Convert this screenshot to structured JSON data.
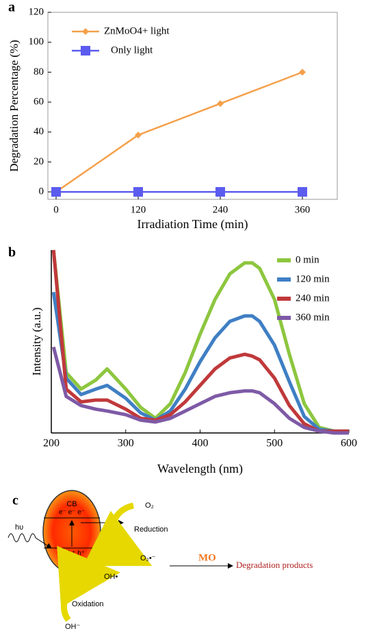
{
  "chart_data": [
    {
      "type": "line",
      "label": "a",
      "xlabel": "Irradiation Time (min)",
      "ylabel": "Degradation Percentage (%)",
      "x": [
        0,
        120,
        240,
        360
      ],
      "xlim": [
        -12,
        411
      ],
      "xticks": [
        0,
        120,
        240,
        360
      ],
      "ylim": [
        -5,
        120
      ],
      "yticks": [
        0,
        20,
        40,
        60,
        80,
        100,
        120
      ],
      "legend": "upper left",
      "series": [
        {
          "name": "ZnMoO4+ light",
          "color": "#f5a04a",
          "marker": "diamond",
          "values": [
            0,
            38,
            59,
            80
          ]
        },
        {
          "name": "Only light",
          "color": "#5b5bef",
          "marker": "square",
          "values": [
            0,
            0,
            0,
            0
          ]
        }
      ]
    },
    {
      "type": "line",
      "label": "b",
      "xlabel": "Wavelength (nm)",
      "ylabel": "Intensity (a.u.)",
      "x": [
        203,
        220,
        240,
        260,
        275,
        300,
        320,
        340,
        360,
        380,
        400,
        420,
        440,
        460,
        470,
        480,
        500,
        520,
        540,
        560,
        580,
        600
      ],
      "xlim": [
        200,
        600
      ],
      "xticks": [
        200,
        300,
        400,
        500,
        600
      ],
      "ylim": [
        0,
        100
      ],
      "legend": "upper right",
      "series": [
        {
          "name": "0 min",
          "color": "#8dc63f",
          "values": [
            100,
            33,
            24,
            29,
            35,
            24,
            14,
            8,
            16,
            33,
            54,
            73,
            87,
            93,
            93,
            90,
            73,
            43,
            16,
            3,
            1,
            1
          ]
        },
        {
          "name": "120 min",
          "color": "#3f7fc4",
          "values": [
            77,
            30,
            21,
            24,
            26,
            19,
            11,
            7,
            12,
            24,
            39,
            52,
            61,
            64,
            64,
            61,
            48,
            28,
            9,
            2,
            1,
            1
          ]
        },
        {
          "name": "240 min",
          "color": "#c0393b",
          "values": [
            100,
            24,
            17,
            18,
            18,
            13,
            8,
            7,
            10,
            17,
            26,
            35,
            41,
            43,
            42,
            40,
            30,
            15,
            5,
            1,
            1,
            1
          ]
        },
        {
          "name": "360 min",
          "color": "#7e5aa6",
          "values": [
            47,
            20,
            15,
            13,
            12,
            10,
            7,
            6,
            8,
            12,
            16,
            20,
            22,
            23,
            23,
            22,
            16,
            8,
            3,
            1,
            0,
            0
          ]
        }
      ]
    }
  ],
  "diagram": {
    "label": "c",
    "cb": "CB",
    "electrons": "e⁻ e⁻ e⁻",
    "light": "hυ",
    "holes": "h⁺ h⁺ h⁺",
    "vb": "VB",
    "o2": "O₂",
    "reduction": "Reduction",
    "superoxide": "O₂•⁻",
    "hydroxyl_radical": "OH•",
    "oxidation": "Oxidation",
    "hydroxide": "OH⁻",
    "pollutant": "MO",
    "products": "Degradation products"
  }
}
